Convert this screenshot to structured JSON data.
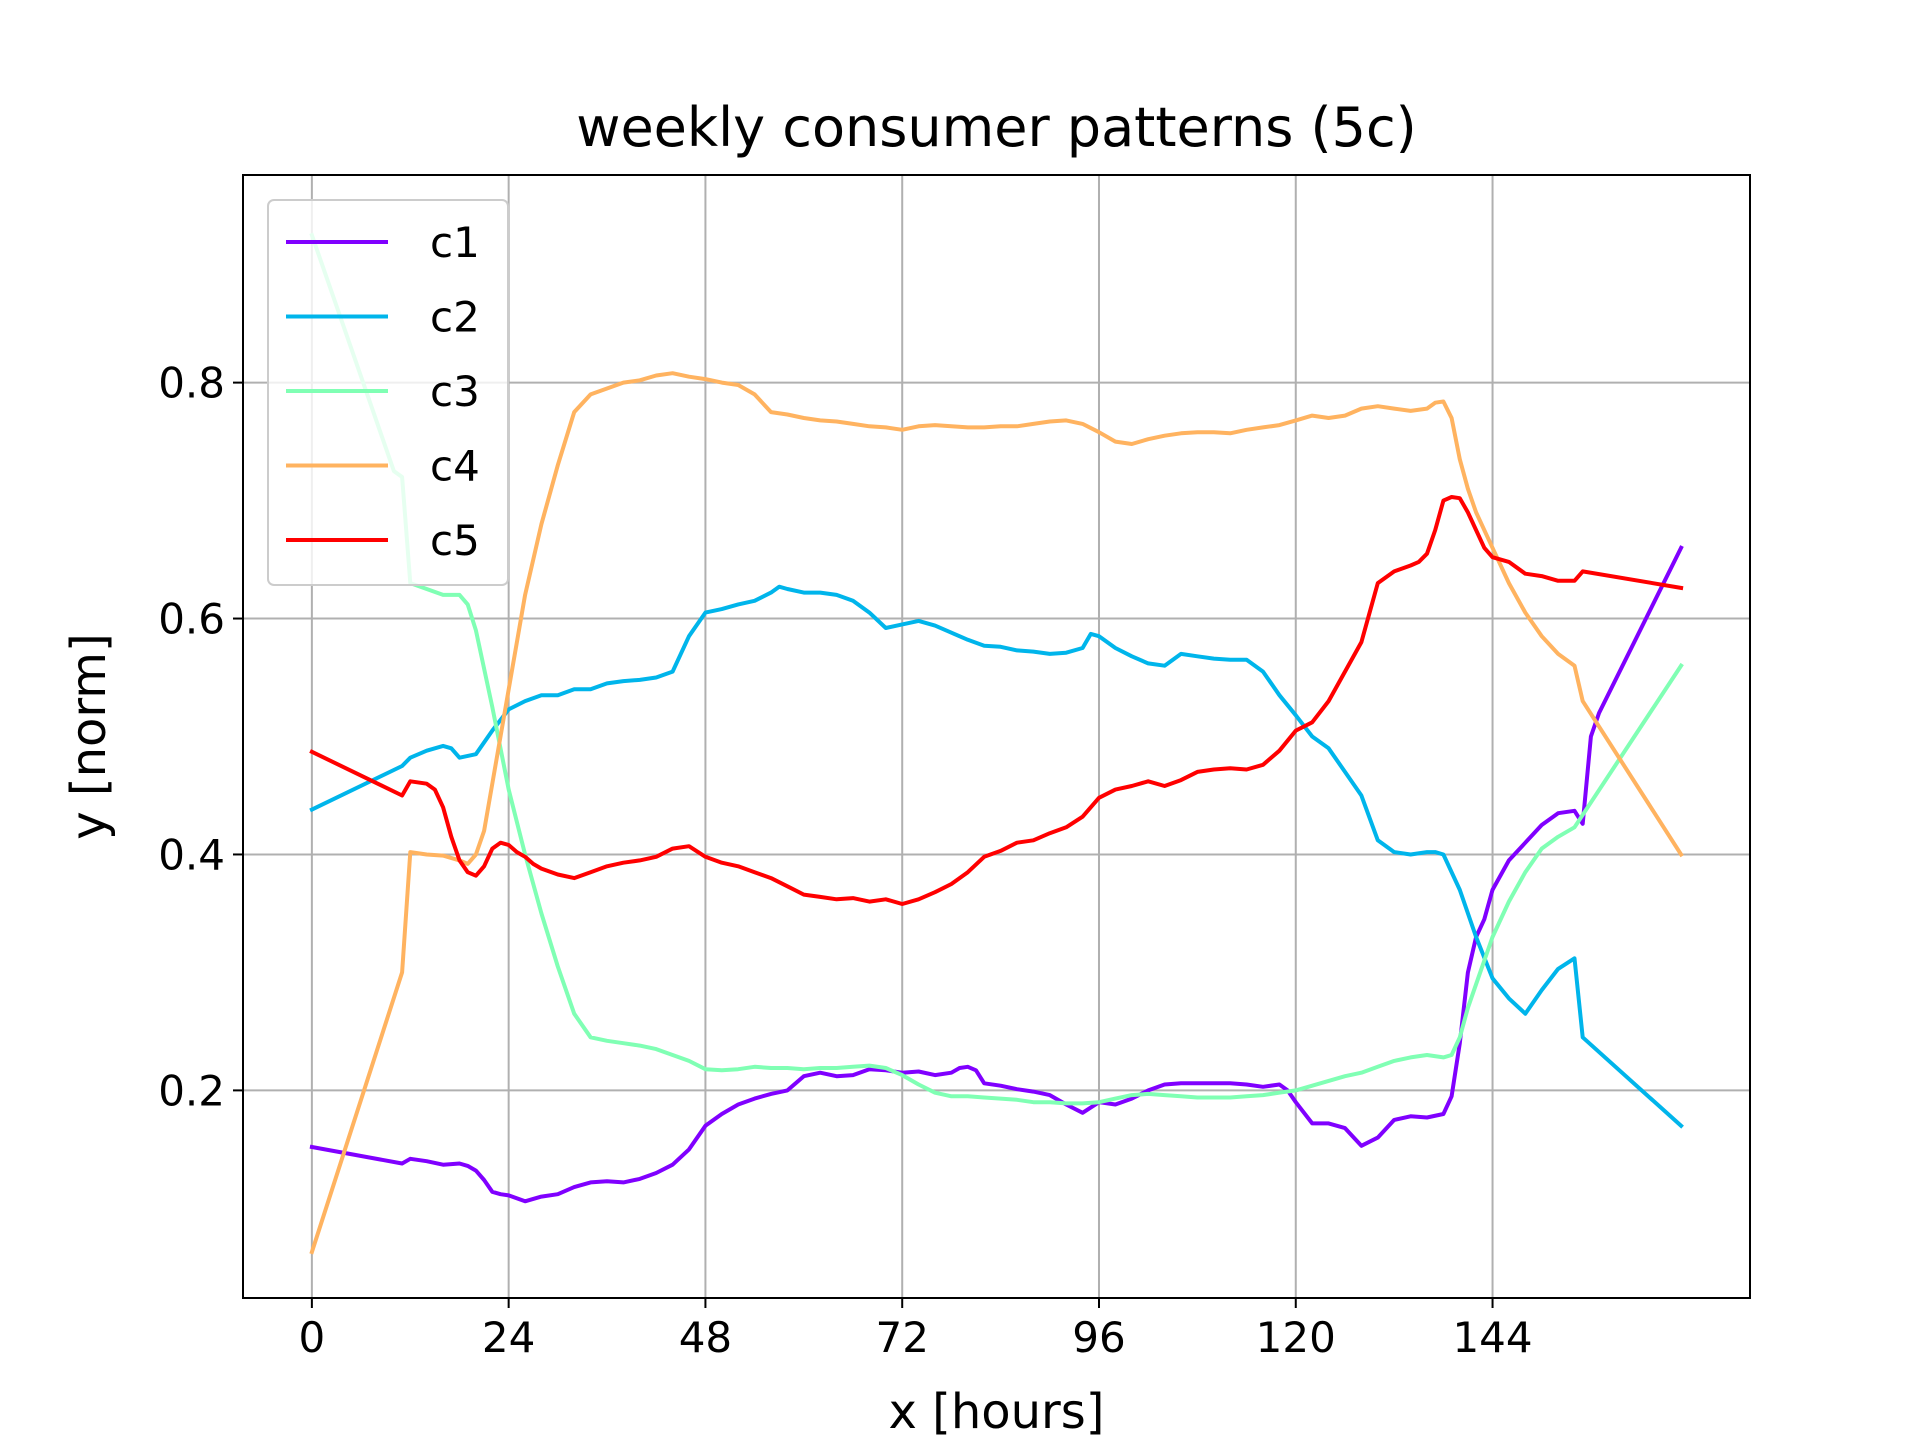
{
  "chart_data": {
    "type": "line",
    "title": "weekly consumer patterns (5c)",
    "xlabel": "x [hours]",
    "ylabel": "y [norm]",
    "xlim": [
      -8.4,
      175.4
    ],
    "ylim": [
      0.024,
      0.976
    ],
    "xticks": [
      0,
      24,
      48,
      72,
      96,
      120,
      144
    ],
    "xtick_labels": [
      "0",
      "24",
      "48",
      "72",
      "96",
      "120",
      "144"
    ],
    "yticks": [
      0.2,
      0.4,
      0.6,
      0.8
    ],
    "ytick_labels": [
      "0.2",
      "0.4",
      "0.6",
      "0.8"
    ],
    "grid": true,
    "legend_position": "upper-left",
    "series": [
      {
        "name": "c1",
        "color": "#8000ff",
        "x": [
          0,
          11,
          12,
          14,
          16,
          18,
          19,
          20,
          21,
          22,
          23,
          24,
          26,
          27,
          28,
          30,
          32,
          34,
          36,
          38,
          40,
          42,
          44,
          46,
          48,
          50,
          52,
          54,
          56,
          58,
          60,
          62,
          64,
          66,
          68,
          70,
          72,
          74,
          76,
          78,
          79,
          80,
          81,
          82,
          84,
          86,
          88,
          90,
          92,
          94,
          96,
          98,
          100,
          102,
          104,
          106,
          108,
          110,
          112,
          114,
          116,
          118,
          119,
          120,
          122,
          124,
          126,
          128,
          130,
          132,
          134,
          136,
          138,
          139,
          140,
          141,
          142,
          143,
          144,
          146,
          148,
          150,
          152,
          154,
          155,
          156,
          157,
          167
        ],
        "y": [
          0.152,
          0.138,
          0.142,
          0.14,
          0.137,
          0.138,
          0.136,
          0.132,
          0.124,
          0.114,
          0.112,
          0.111,
          0.106,
          0.108,
          0.11,
          0.112,
          0.118,
          0.122,
          0.123,
          0.122,
          0.125,
          0.13,
          0.137,
          0.15,
          0.17,
          0.18,
          0.188,
          0.193,
          0.197,
          0.2,
          0.212,
          0.215,
          0.212,
          0.213,
          0.218,
          0.217,
          0.215,
          0.216,
          0.213,
          0.215,
          0.219,
          0.22,
          0.217,
          0.206,
          0.204,
          0.201,
          0.199,
          0.196,
          0.188,
          0.181,
          0.19,
          0.188,
          0.193,
          0.2,
          0.205,
          0.206,
          0.206,
          0.206,
          0.206,
          0.205,
          0.203,
          0.205,
          0.2,
          0.19,
          0.172,
          0.172,
          0.168,
          0.153,
          0.16,
          0.175,
          0.178,
          0.177,
          0.18,
          0.195,
          0.24,
          0.3,
          0.33,
          0.345,
          0.37,
          0.395,
          0.41,
          0.425,
          0.435,
          0.437,
          0.426,
          0.5,
          0.52,
          0.66
        ]
      },
      {
        "name": "c2",
        "color": "#00b5eb",
        "x": [
          0,
          11,
          12,
          14,
          16,
          17,
          18,
          20,
          22,
          24,
          26,
          28,
          30,
          32,
          34,
          36,
          38,
          40,
          42,
          44,
          46,
          48,
          50,
          52,
          54,
          56,
          57,
          58,
          60,
          62,
          64,
          66,
          68,
          70,
          72,
          74,
          76,
          78,
          80,
          82,
          84,
          86,
          88,
          90,
          92,
          94,
          95,
          96,
          98,
          100,
          102,
          104,
          106,
          108,
          110,
          112,
          114,
          116,
          118,
          120,
          122,
          124,
          126,
          128,
          130,
          132,
          134,
          136,
          137,
          138,
          140,
          142,
          144,
          146,
          148,
          150,
          152,
          154,
          155,
          167
        ],
        "y": [
          0.438,
          0.475,
          0.482,
          0.488,
          0.492,
          0.49,
          0.482,
          0.485,
          0.505,
          0.523,
          0.53,
          0.535,
          0.535,
          0.54,
          0.54,
          0.545,
          0.547,
          0.548,
          0.55,
          0.555,
          0.585,
          0.605,
          0.608,
          0.612,
          0.615,
          0.622,
          0.627,
          0.625,
          0.622,
          0.622,
          0.62,
          0.615,
          0.605,
          0.592,
          0.595,
          0.598,
          0.594,
          0.588,
          0.582,
          0.577,
          0.576,
          0.573,
          0.572,
          0.57,
          0.571,
          0.575,
          0.587,
          0.585,
          0.575,
          0.568,
          0.562,
          0.56,
          0.57,
          0.568,
          0.566,
          0.565,
          0.565,
          0.555,
          0.535,
          0.518,
          0.5,
          0.49,
          0.47,
          0.45,
          0.412,
          0.402,
          0.4,
          0.402,
          0.402,
          0.4,
          0.37,
          0.33,
          0.295,
          0.278,
          0.265,
          0.285,
          0.303,
          0.312,
          0.245,
          0.17
        ]
      },
      {
        "name": "c3",
        "color": "#80ffb4",
        "x": [
          0,
          10,
          11,
          12,
          14,
          16,
          18,
          19,
          20,
          22,
          24,
          26,
          28,
          30,
          32,
          34,
          36,
          38,
          40,
          42,
          44,
          46,
          48,
          50,
          52,
          54,
          56,
          58,
          60,
          62,
          64,
          66,
          68,
          70,
          72,
          74,
          76,
          78,
          80,
          82,
          84,
          86,
          88,
          90,
          92,
          94,
          96,
          98,
          100,
          102,
          104,
          106,
          108,
          110,
          112,
          114,
          116,
          118,
          120,
          122,
          124,
          126,
          128,
          130,
          132,
          134,
          136,
          138,
          139,
          140,
          141,
          142,
          144,
          146,
          148,
          150,
          152,
          154,
          167
        ],
        "y": [
          0.925,
          0.725,
          0.72,
          0.63,
          0.625,
          0.62,
          0.62,
          0.612,
          0.59,
          0.525,
          0.455,
          0.4,
          0.35,
          0.305,
          0.265,
          0.245,
          0.242,
          0.24,
          0.238,
          0.235,
          0.23,
          0.225,
          0.218,
          0.217,
          0.218,
          0.22,
          0.219,
          0.219,
          0.218,
          0.219,
          0.219,
          0.22,
          0.221,
          0.219,
          0.213,
          0.205,
          0.198,
          0.195,
          0.195,
          0.194,
          0.193,
          0.192,
          0.19,
          0.19,
          0.189,
          0.189,
          0.19,
          0.193,
          0.196,
          0.197,
          0.196,
          0.195,
          0.194,
          0.194,
          0.194,
          0.195,
          0.196,
          0.198,
          0.2,
          0.204,
          0.208,
          0.212,
          0.215,
          0.22,
          0.225,
          0.228,
          0.23,
          0.228,
          0.23,
          0.245,
          0.27,
          0.29,
          0.33,
          0.36,
          0.385,
          0.405,
          0.415,
          0.423,
          0.56
        ]
      },
      {
        "name": "c4",
        "color": "#ffb360",
        "x": [
          0,
          11,
          12,
          14,
          16,
          18,
          19,
          20,
          21,
          22,
          24,
          26,
          28,
          30,
          32,
          34,
          36,
          38,
          40,
          42,
          44,
          46,
          48,
          50,
          52,
          54,
          56,
          58,
          60,
          62,
          64,
          66,
          68,
          70,
          72,
          74,
          76,
          78,
          80,
          82,
          84,
          86,
          88,
          90,
          92,
          94,
          96,
          98,
          100,
          102,
          104,
          106,
          108,
          110,
          112,
          114,
          116,
          118,
          120,
          122,
          124,
          126,
          128,
          130,
          132,
          134,
          136,
          137,
          138,
          139,
          140,
          141,
          142,
          144,
          146,
          148,
          150,
          152,
          154,
          155,
          167
        ],
        "y": [
          0.063,
          0.3,
          0.402,
          0.4,
          0.399,
          0.395,
          0.392,
          0.4,
          0.42,
          0.46,
          0.54,
          0.62,
          0.68,
          0.73,
          0.775,
          0.79,
          0.795,
          0.8,
          0.802,
          0.806,
          0.808,
          0.805,
          0.803,
          0.8,
          0.798,
          0.79,
          0.775,
          0.773,
          0.77,
          0.768,
          0.767,
          0.765,
          0.763,
          0.762,
          0.76,
          0.763,
          0.764,
          0.763,
          0.762,
          0.762,
          0.763,
          0.763,
          0.765,
          0.767,
          0.768,
          0.765,
          0.758,
          0.75,
          0.748,
          0.752,
          0.755,
          0.757,
          0.758,
          0.758,
          0.757,
          0.76,
          0.762,
          0.764,
          0.768,
          0.772,
          0.77,
          0.772,
          0.778,
          0.78,
          0.778,
          0.776,
          0.778,
          0.783,
          0.784,
          0.77,
          0.735,
          0.71,
          0.69,
          0.66,
          0.63,
          0.605,
          0.585,
          0.57,
          0.56,
          0.53,
          0.4
        ]
      },
      {
        "name": "c5",
        "color": "#ff0000",
        "x": [
          0,
          11,
          12,
          14,
          15,
          16,
          17,
          18,
          19,
          20,
          21,
          22,
          23,
          24,
          25,
          26,
          27,
          28,
          30,
          32,
          34,
          36,
          38,
          40,
          42,
          44,
          46,
          48,
          50,
          52,
          54,
          56,
          58,
          60,
          62,
          64,
          66,
          68,
          70,
          72,
          74,
          76,
          78,
          80,
          82,
          84,
          86,
          88,
          90,
          92,
          94,
          96,
          98,
          100,
          102,
          104,
          106,
          108,
          110,
          112,
          114,
          116,
          118,
          120,
          122,
          124,
          126,
          128,
          130,
          132,
          134,
          135,
          136,
          137,
          138,
          139,
          140,
          141,
          142,
          143,
          144,
          146,
          148,
          150,
          152,
          154,
          155,
          167
        ],
        "y": [
          0.487,
          0.45,
          0.462,
          0.46,
          0.455,
          0.44,
          0.415,
          0.395,
          0.385,
          0.382,
          0.39,
          0.405,
          0.41,
          0.408,
          0.402,
          0.398,
          0.392,
          0.388,
          0.383,
          0.38,
          0.385,
          0.39,
          0.393,
          0.395,
          0.398,
          0.405,
          0.407,
          0.398,
          0.393,
          0.39,
          0.385,
          0.38,
          0.373,
          0.366,
          0.364,
          0.362,
          0.363,
          0.36,
          0.362,
          0.358,
          0.362,
          0.368,
          0.375,
          0.385,
          0.398,
          0.403,
          0.41,
          0.412,
          0.418,
          0.423,
          0.432,
          0.448,
          0.455,
          0.458,
          0.462,
          0.458,
          0.463,
          0.47,
          0.472,
          0.473,
          0.472,
          0.476,
          0.488,
          0.505,
          0.512,
          0.53,
          0.555,
          0.58,
          0.63,
          0.64,
          0.645,
          0.648,
          0.655,
          0.675,
          0.7,
          0.703,
          0.702,
          0.69,
          0.675,
          0.66,
          0.652,
          0.648,
          0.638,
          0.636,
          0.632,
          0.632,
          0.64,
          0.626
        ]
      }
    ]
  }
}
